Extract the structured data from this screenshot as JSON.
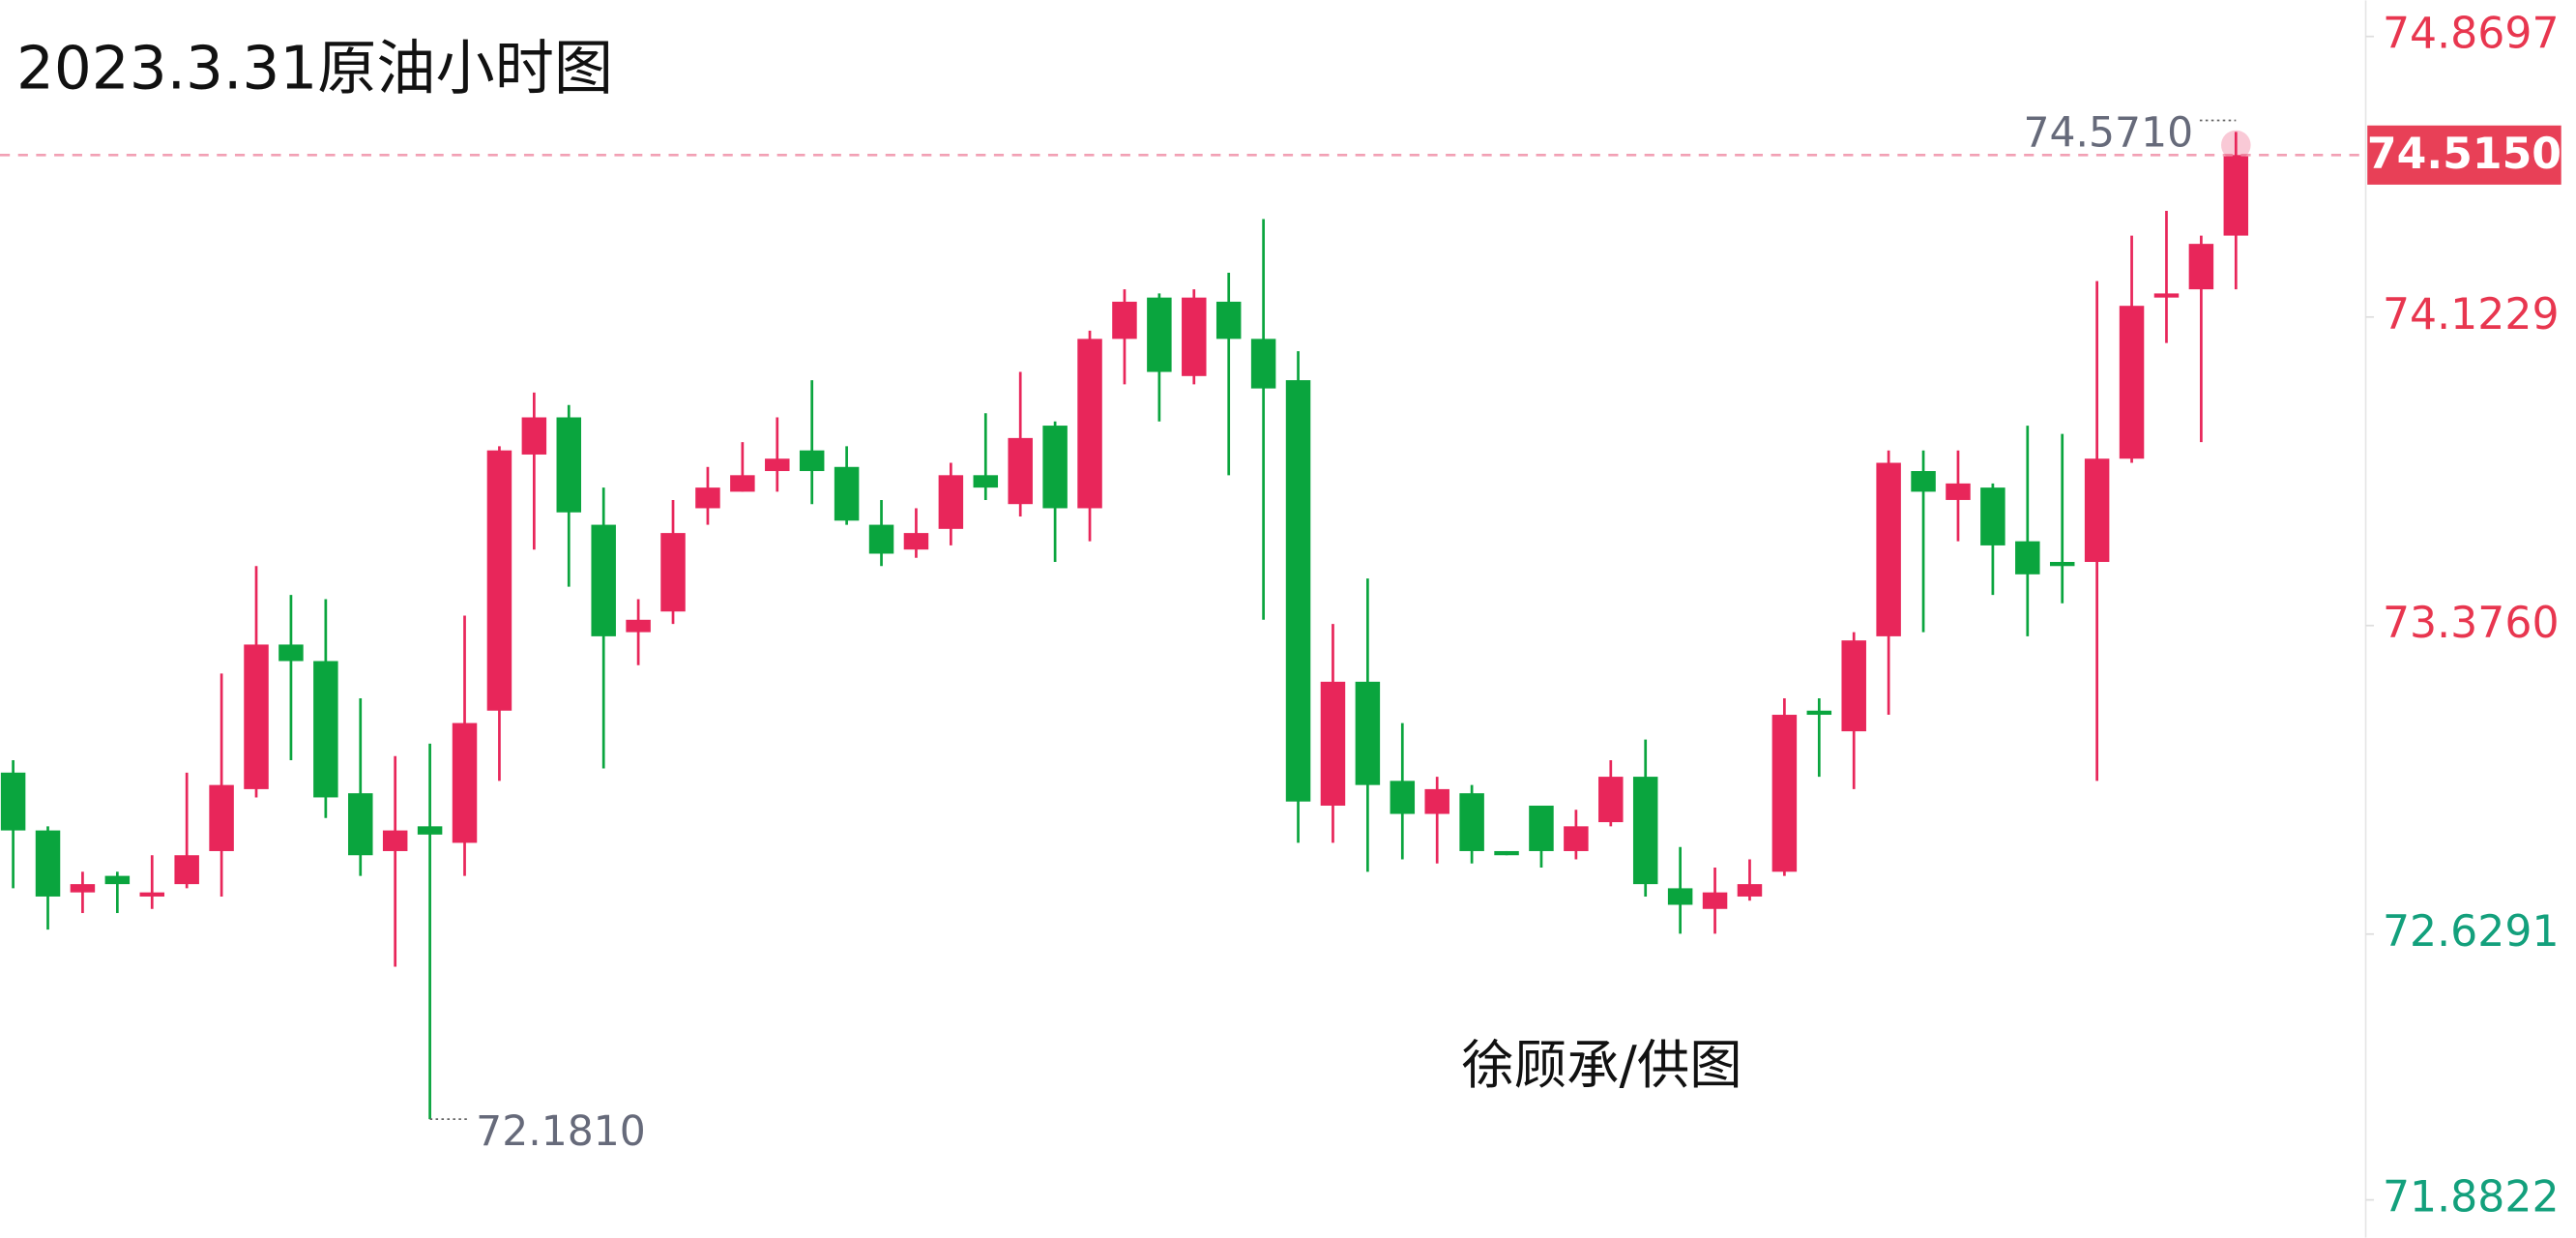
{
  "chart_data": {
    "type": "candlestick",
    "title": "2023.3.31原油小时图",
    "annotation": "徐顾承/供图",
    "up_color": "#e8265a",
    "down_color": "#0aa53e",
    "ylim": [
      71.8822,
      74.8697
    ],
    "yticks": [
      74.8697,
      74.1229,
      {
        "value": 73.376,
        "label": "73.3760"
      },
      72.6291,
      71.8822
    ],
    "ytick_colors": [
      "#e8364f",
      "#e8364f",
      "#e8364f",
      "#13a07c",
      "#13a07c"
    ],
    "last_price": {
      "value": 74.515,
      "label": "74.5150"
    },
    "high_mark": {
      "value": 74.571,
      "label": "74.5710"
    },
    "low_mark": {
      "value": 72.181,
      "label": "72.1810"
    },
    "open": [
      73.02,
      72.88,
      72.73,
      72.77,
      72.72,
      72.75,
      72.83,
      72.98,
      73.33,
      73.29,
      72.97,
      72.83,
      72.89,
      72.85,
      73.17,
      73.79,
      73.88,
      73.62,
      73.36,
      73.41,
      73.66,
      73.7,
      73.75,
      73.8,
      73.76,
      73.62,
      73.56,
      73.61,
      73.74,
      73.67,
      73.86,
      73.66,
      74.07,
      74.17,
      73.98,
      74.16,
      74.07,
      73.97,
      72.94,
      73.24,
      73.0,
      72.92,
      72.97,
      72.83,
      72.94,
      72.83,
      72.9,
      73.01,
      72.74,
      72.69,
      72.72,
      72.78,
      73.17,
      73.12,
      73.35,
      73.75,
      73.68,
      73.71,
      73.58,
      73.53,
      73.53,
      73.78,
      74.17,
      74.19,
      74.32
    ],
    "high": [
      73.05,
      72.89,
      72.78,
      72.78,
      72.82,
      73.02,
      73.26,
      73.52,
      73.45,
      73.44,
      73.2,
      73.06,
      73.09,
      73.4,
      73.81,
      73.94,
      73.91,
      73.71,
      73.44,
      73.68,
      73.76,
      73.82,
      73.88,
      73.97,
      73.81,
      73.68,
      73.66,
      73.77,
      73.89,
      73.99,
      73.87,
      74.09,
      74.19,
      74.18,
      74.19,
      74.23,
      74.36,
      74.04,
      73.38,
      73.49,
      73.14,
      73.01,
      72.99,
      72.83,
      72.94,
      72.93,
      73.05,
      73.1,
      72.84,
      72.79,
      72.81,
      73.2,
      73.2,
      73.36,
      73.8,
      73.8,
      73.8,
      73.72,
      73.86,
      73.84,
      74.21,
      74.32,
      74.38,
      74.32,
      74.571
    ],
    "low": [
      72.74,
      72.64,
      72.68,
      72.68,
      72.69,
      72.74,
      72.72,
      72.96,
      73.05,
      72.91,
      72.77,
      72.55,
      72.181,
      72.77,
      73.0,
      73.56,
      73.47,
      73.03,
      73.28,
      73.38,
      73.62,
      73.7,
      73.7,
      73.67,
      73.62,
      73.52,
      73.54,
      73.57,
      73.68,
      73.64,
      73.53,
      73.58,
      73.96,
      73.87,
      73.96,
      73.74,
      73.39,
      72.85,
      72.85,
      72.78,
      72.81,
      72.8,
      72.8,
      72.82,
      72.79,
      72.81,
      72.89,
      72.72,
      72.63,
      72.63,
      72.71,
      72.77,
      73.01,
      72.98,
      73.16,
      73.36,
      73.58,
      73.45,
      73.35,
      73.43,
      73.0,
      73.77,
      74.06,
      73.82,
      74.19
    ],
    "close": [
      72.88,
      72.72,
      72.75,
      72.75,
      72.73,
      72.82,
      72.99,
      73.33,
      73.29,
      72.96,
      72.82,
      72.88,
      72.87,
      73.14,
      73.8,
      73.88,
      73.65,
      73.35,
      73.39,
      73.6,
      73.71,
      73.74,
      73.78,
      73.75,
      73.63,
      73.55,
      73.6,
      73.74,
      73.71,
      73.83,
      73.66,
      74.07,
      74.16,
      73.99,
      74.17,
      74.07,
      73.95,
      72.95,
      73.24,
      72.99,
      72.92,
      72.98,
      72.83,
      72.82,
      72.83,
      72.89,
      73.01,
      72.75,
      72.7,
      72.73,
      72.75,
      73.16,
      73.16,
      73.34,
      73.77,
      73.7,
      73.72,
      73.57,
      73.5,
      73.52,
      73.78,
      74.15,
      74.18,
      74.3,
      74.515
    ]
  }
}
